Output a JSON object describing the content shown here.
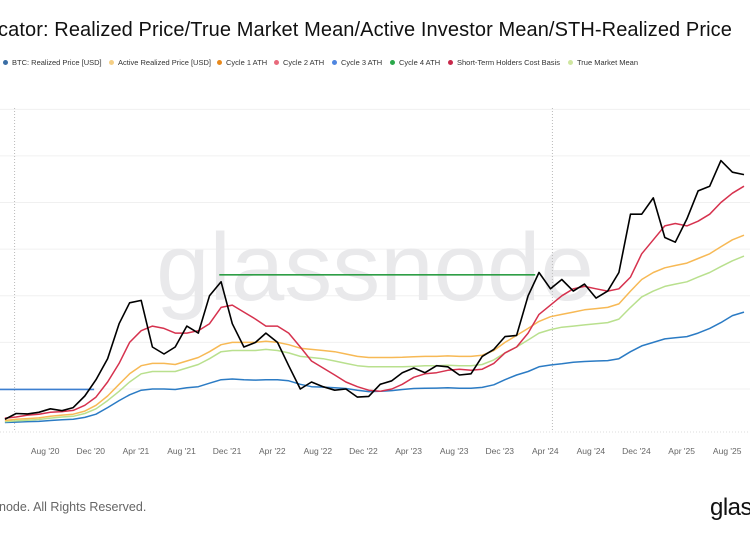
{
  "header": {
    "title": "cator: Realized Price/True Market Mean/Active Investor Mean/STH-Realized Price"
  },
  "legend": [
    {
      "label": "BTC: Realized Price [USD]",
      "color": "#3a6ea5"
    },
    {
      "label": "Active Realized Price [USD]",
      "color": "#f5cf85"
    },
    {
      "label": "Cycle 1 ATH",
      "color": "#e8891c"
    },
    {
      "label": "Cycle 2 ATH",
      "color": "#e86a7c"
    },
    {
      "label": "Cycle 3 ATH",
      "color": "#4f86e0"
    },
    {
      "label": "Cycle 4 ATH",
      "color": "#2aa84a"
    },
    {
      "label": "Short-Term Holders Cost Basis",
      "color": "#c8284a"
    },
    {
      "label": "True Market Mean",
      "color": "#cfe6a0"
    }
  ],
  "watermark": "glassnode",
  "footer": {
    "copyright": "node. All Rights Reserved.",
    "logo": "glas"
  },
  "chart_data": {
    "type": "line",
    "title": "cator: Realized Price/True Market Mean/Active Investor Mean/STH-Realized Price",
    "xlabel": "",
    "ylabel": "",
    "x_range": [
      "2020-04-02",
      "2025-10-01"
    ],
    "ylim": [
      0,
      144000
    ],
    "y_scale": "linear",
    "grid": true,
    "legend_position": "top",
    "x_ticks": [
      "Aug '20",
      "Dec '20",
      "Apr '21",
      "Aug '21",
      "Dec '21",
      "Apr '22",
      "Aug '22",
      "Dec '22",
      "Apr '23",
      "Aug '23",
      "Dec '23",
      "Apr '24",
      "Aug '24",
      "Dec '24",
      "Apr '25",
      "Aug '25"
    ],
    "x_tick_dates": [
      "2020-08-01",
      "2020-12-01",
      "2021-04-01",
      "2021-08-01",
      "2021-12-01",
      "2022-04-01",
      "2022-08-01",
      "2022-12-01",
      "2023-04-01",
      "2023-08-01",
      "2023-12-01",
      "2024-04-01",
      "2024-08-01",
      "2024-12-01",
      "2025-04-01",
      "2025-08-01"
    ],
    "y_gridlines": [
      20000,
      40000,
      60000,
      80000,
      100000,
      120000,
      140000
    ],
    "event_markers": [
      "2020-05-11",
      "2024-04-20"
    ],
    "dates": [
      "2020-04",
      "2020-05",
      "2020-06",
      "2020-07",
      "2020-08",
      "2020-09",
      "2020-10",
      "2020-11",
      "2020-12",
      "2021-01",
      "2021-02",
      "2021-03",
      "2021-04",
      "2021-05",
      "2021-06",
      "2021-07",
      "2021-08",
      "2021-09",
      "2021-10",
      "2021-11",
      "2021-12",
      "2022-01",
      "2022-02",
      "2022-03",
      "2022-04",
      "2022-05",
      "2022-06",
      "2022-07",
      "2022-08",
      "2022-09",
      "2022-10",
      "2022-11",
      "2022-12",
      "2023-01",
      "2023-02",
      "2023-03",
      "2023-04",
      "2023-05",
      "2023-06",
      "2023-07",
      "2023-08",
      "2023-09",
      "2023-10",
      "2023-11",
      "2023-12",
      "2024-01",
      "2024-02",
      "2024-03",
      "2024-04",
      "2024-05",
      "2024-06",
      "2024-07",
      "2024-08",
      "2024-09",
      "2024-10",
      "2024-11",
      "2024-12",
      "2025-01",
      "2025-02",
      "2025-03",
      "2025-04",
      "2025-05",
      "2025-06",
      "2025-07",
      "2025-08",
      "2025-09"
    ],
    "series": [
      {
        "key": "price",
        "color": "#000000",
        "values": [
          7000,
          9500,
          9300,
          10000,
          11500,
          10700,
          12000,
          17000,
          24000,
          33000,
          48000,
          57000,
          58000,
          38000,
          35000,
          38000,
          47000,
          44000,
          60000,
          66000,
          48000,
          38000,
          40000,
          44000,
          40000,
          30000,
          20000,
          23000,
          21000,
          19500,
          20000,
          16500,
          16800,
          22000,
          23500,
          27000,
          29000,
          27000,
          30000,
          29500,
          26000,
          26500,
          34000,
          37000,
          42500,
          43000,
          60000,
          70000,
          63000,
          67000,
          62000,
          65000,
          59000,
          62000,
          70000,
          95000,
          95000,
          102000,
          85000,
          83000,
          93000,
          105000,
          107000,
          118000,
          113000,
          112000
        ]
      },
      {
        "key": "realized",
        "name": "BTC: Realized Price [USD]",
        "color": "#2b7bc4",
        "values": [
          5600,
          5800,
          6000,
          6100,
          6500,
          6800,
          7000,
          7800,
          9200,
          12000,
          15000,
          17500,
          19500,
          20000,
          20000,
          19800,
          20500,
          21000,
          22500,
          24000,
          24300,
          24000,
          23800,
          24000,
          24000,
          23500,
          22000,
          21000,
          20800,
          20500,
          20200,
          19500,
          18900,
          19000,
          19300,
          19800,
          20200,
          20300,
          20400,
          20500,
          20300,
          20300,
          20700,
          21800,
          24000,
          26000,
          27500,
          29500,
          30300,
          30800,
          31500,
          31800,
          32000,
          32200,
          33000,
          36000,
          38500,
          40000,
          41500,
          42000,
          42500,
          44000,
          46000,
          48500,
          51500,
          53000
        ]
      },
      {
        "key": "active",
        "name": "Active Realized Price [USD]",
        "color": "#f7b955",
        "values": [
          6500,
          7000,
          7300,
          7600,
          8300,
          8800,
          9200,
          10500,
          13000,
          17000,
          22000,
          26500,
          30000,
          31000,
          31000,
          30500,
          32000,
          33500,
          36000,
          39000,
          40000,
          40000,
          40000,
          40500,
          40000,
          39000,
          37500,
          37000,
          36500,
          36000,
          35000,
          34000,
          33500,
          33500,
          33500,
          33600,
          33800,
          34000,
          34000,
          34200,
          34000,
          34000,
          34500,
          36500,
          40000,
          43000,
          46000,
          49000,
          51000,
          52000,
          53000,
          54000,
          54500,
          55000,
          56500,
          62000,
          67000,
          70000,
          72000,
          73000,
          74000,
          76000,
          78000,
          81000,
          84000,
          86000
        ]
      },
      {
        "key": "tmm",
        "name": "True Market Mean",
        "color": "#b9e08e",
        "values": [
          6000,
          6300,
          6600,
          6900,
          7500,
          8000,
          8300,
          9500,
          11500,
          15000,
          19000,
          23000,
          26500,
          27500,
          27500,
          27500,
          29000,
          30500,
          33000,
          36000,
          36500,
          36500,
          36500,
          37000,
          36500,
          35500,
          34000,
          33500,
          33000,
          32000,
          31000,
          30000,
          29500,
          29500,
          29500,
          29500,
          29700,
          30000,
          30000,
          30200,
          30000,
          30000,
          30500,
          32500,
          35500,
          38000,
          41000,
          44000,
          45500,
          46500,
          47000,
          47500,
          48000,
          48500,
          50000,
          55000,
          59500,
          62000,
          64000,
          65000,
          66000,
          68000,
          70000,
          72500,
          75000,
          77000
        ]
      },
      {
        "key": "sth",
        "name": "Short-Term Holders Cost Basis",
        "color": "#d6324e",
        "values": [
          7500,
          8000,
          8800,
          9200,
          10000,
          10300,
          10800,
          13000,
          16500,
          23000,
          31000,
          40000,
          45000,
          47000,
          46000,
          44000,
          44000,
          45000,
          48000,
          55000,
          56000,
          53000,
          50000,
          47000,
          47000,
          44000,
          38000,
          32000,
          29000,
          26000,
          23000,
          21000,
          19500,
          19000,
          20000,
          22000,
          25000,
          26500,
          27000,
          28000,
          28500,
          28000,
          28500,
          31000,
          35500,
          38000,
          44000,
          52000,
          56000,
          60000,
          63000,
          64000,
          63000,
          62000,
          63000,
          68000,
          78000,
          84000,
          90000,
          91000,
          90000,
          92000,
          95000,
          100000,
          104000,
          107000
        ]
      }
    ],
    "horizontal_levels": [
      {
        "name": "Cycle 3 ATH",
        "value": 19800,
        "from": "2020-04-02",
        "to": "2020-12-10",
        "color": "#3d7fd0"
      },
      {
        "name": "Cycle 4 ATH",
        "value": 69000,
        "from": "2021-11-10",
        "to": "2024-03-05",
        "color": "#2e9e46"
      }
    ]
  }
}
